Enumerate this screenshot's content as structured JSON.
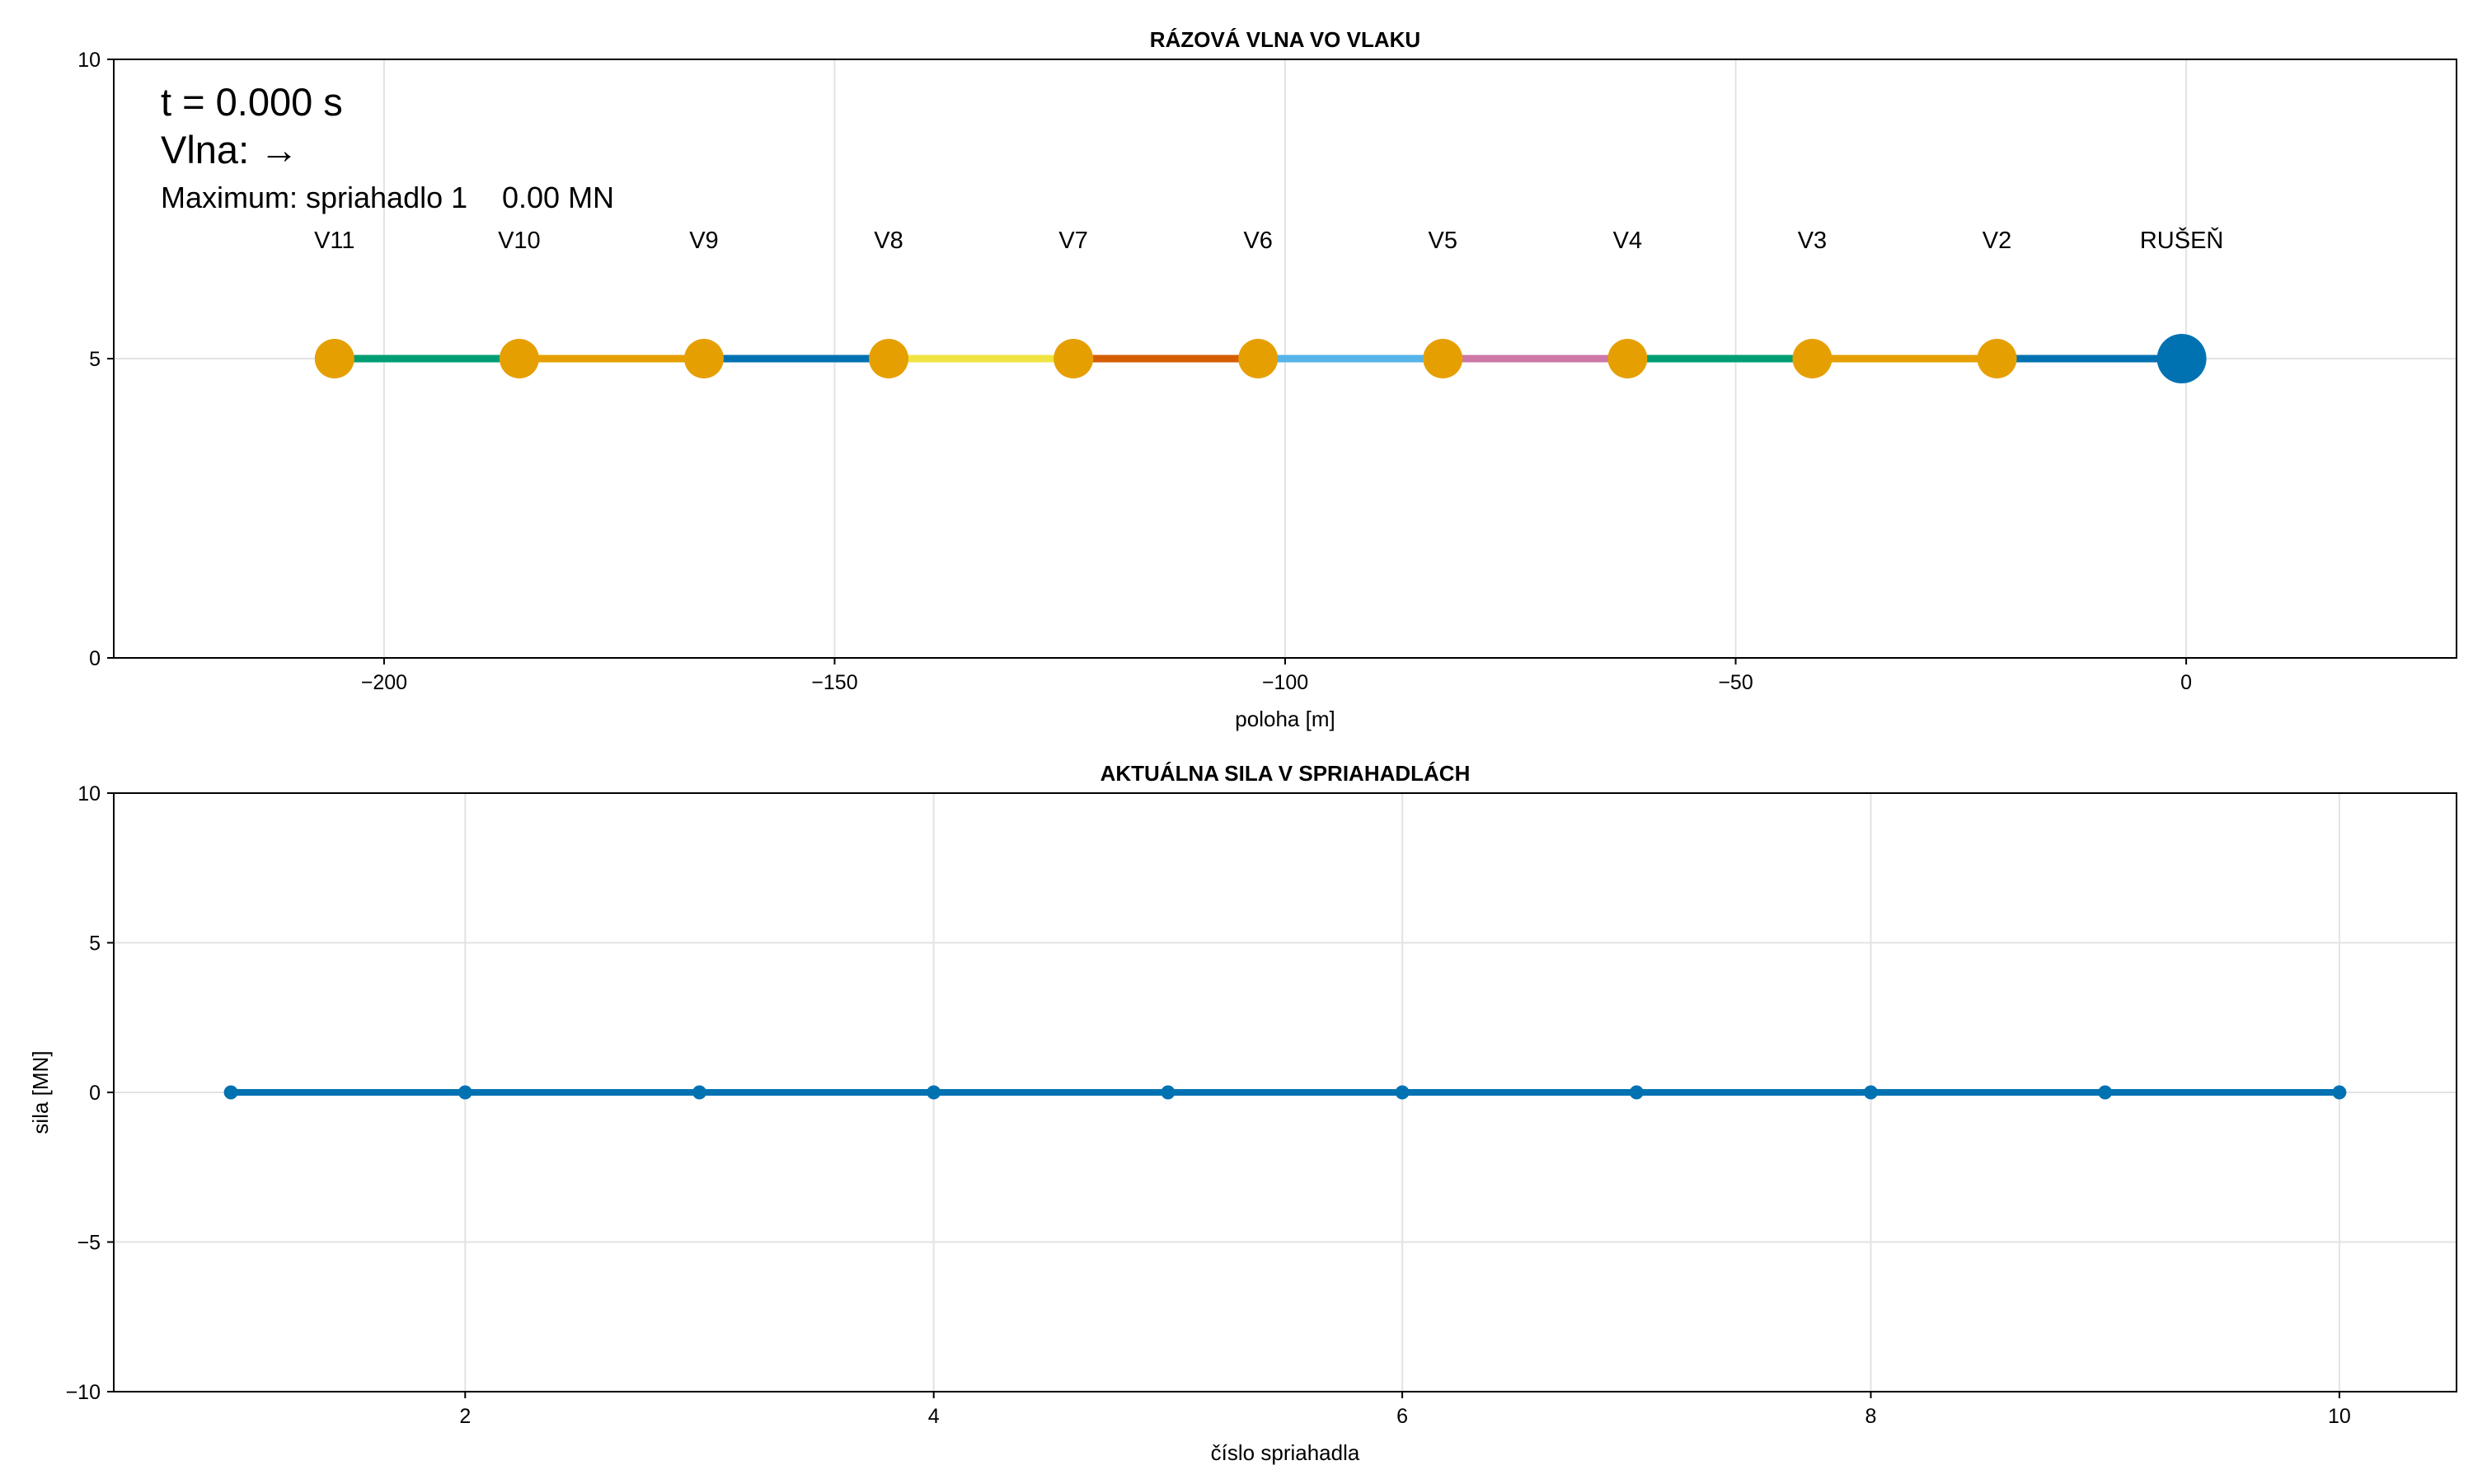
{
  "chart_data": [
    {
      "type": "scatter",
      "title": "RÁZOVÁ VLNA VO VLAKU",
      "xlabel": "poloha [m]",
      "ylabel": "",
      "xlim": [
        -230,
        30
      ],
      "ylim": [
        0,
        10
      ],
      "xticks": [
        -200,
        -150,
        -100,
        -50,
        0
      ],
      "xtick_labels": [
        "−200",
        "−150",
        "−100",
        "−50",
        "0"
      ],
      "yticks": [
        0,
        5,
        10
      ],
      "ytick_labels": [
        "0",
        "5",
        "10"
      ],
      "grid": true,
      "info": {
        "time_text": "t = 0.000 s",
        "wave_text": "Vlna: →",
        "max_label": "Maximum: spriahadlo 1",
        "max_value": "0.00 MN"
      },
      "wagons": [
        {
          "label": "RUŠEŇ",
          "x": -0.5,
          "y": 5,
          "color": "#0072b2",
          "kind": "locomotive"
        },
        {
          "label": "V2",
          "x": -21,
          "y": 5,
          "color": "#e69f00",
          "kind": "wagon"
        },
        {
          "label": "V3",
          "x": -41.5,
          "y": 5,
          "color": "#e69f00",
          "kind": "wagon"
        },
        {
          "label": "V4",
          "x": -62,
          "y": 5,
          "color": "#e69f00",
          "kind": "wagon"
        },
        {
          "label": "V5",
          "x": -82.5,
          "y": 5,
          "color": "#e69f00",
          "kind": "wagon"
        },
        {
          "label": "V6",
          "x": -103,
          "y": 5,
          "color": "#e69f00",
          "kind": "wagon"
        },
        {
          "label": "V7",
          "x": -123.5,
          "y": 5,
          "color": "#e69f00",
          "kind": "wagon"
        },
        {
          "label": "V8",
          "x": -144,
          "y": 5,
          "color": "#e69f00",
          "kind": "wagon"
        },
        {
          "label": "V9",
          "x": -164.5,
          "y": 5,
          "color": "#e69f00",
          "kind": "wagon"
        },
        {
          "label": "V10",
          "x": -185,
          "y": 5,
          "color": "#e69f00",
          "kind": "wagon"
        },
        {
          "label": "V11",
          "x": -205.5,
          "y": 5,
          "color": "#e69f00",
          "kind": "wagon"
        }
      ],
      "couplings": [
        {
          "from": -0.5,
          "to": -21,
          "color": "#0072b2"
        },
        {
          "from": -21,
          "to": -41.5,
          "color": "#e69f00"
        },
        {
          "from": -41.5,
          "to": -62,
          "color": "#009e73"
        },
        {
          "from": -62,
          "to": -82.5,
          "color": "#cc79a7"
        },
        {
          "from": -82.5,
          "to": -103,
          "color": "#56b4e9"
        },
        {
          "from": -103,
          "to": -123.5,
          "color": "#d55e00"
        },
        {
          "from": -123.5,
          "to": -144,
          "color": "#f0e442"
        },
        {
          "from": -144,
          "to": -164.5,
          "color": "#0072b2"
        },
        {
          "from": -164.5,
          "to": -185,
          "color": "#e69f00"
        },
        {
          "from": -185,
          "to": -205.5,
          "color": "#009e73"
        }
      ]
    },
    {
      "type": "line",
      "title": "AKTUÁLNA SILA V SPRIAHADLÁCH",
      "xlabel": "číslo spriahadla",
      "ylabel": "sila [MN]",
      "xlim": [
        0.5,
        10.5
      ],
      "ylim": [
        -10,
        10
      ],
      "xticks": [
        2,
        4,
        6,
        8,
        10
      ],
      "xtick_labels": [
        "2",
        "4",
        "6",
        "8",
        "10"
      ],
      "yticks": [
        -10,
        -5,
        0,
        5,
        10
      ],
      "ytick_labels": [
        "−10",
        "−5",
        "0",
        "5",
        "10"
      ],
      "grid": true,
      "series": [
        {
          "color": "#0072b2",
          "x": [
            1,
            2,
            3,
            4,
            5,
            6,
            7,
            8,
            9,
            10
          ],
          "y": [
            0,
            0,
            0,
            0,
            0,
            0,
            0,
            0,
            0,
            0
          ]
        }
      ]
    }
  ]
}
